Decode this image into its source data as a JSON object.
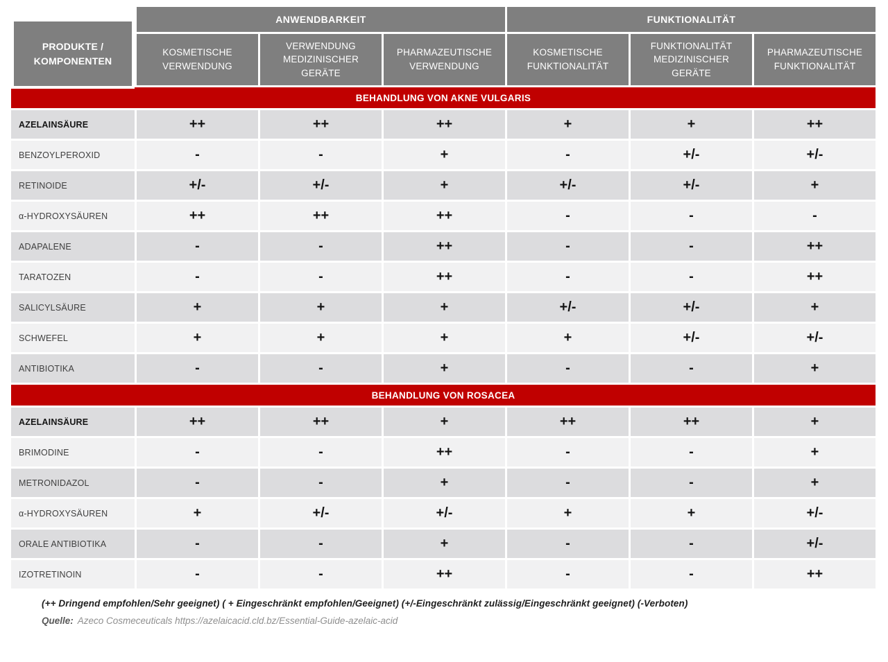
{
  "header": {
    "corner": "PRODUKTE / KOMPONENTEN",
    "groups": [
      {
        "label": "ANWENDBARKEIT"
      },
      {
        "label": "FUNKTIONALITÄT"
      }
    ],
    "columns": [
      "KOSMETISCHE VERWENDUNG",
      "VERWENDUNG MEDIZINISCHER GERÄTE",
      "PHARMAZEUTISCHE VERWENDUNG",
      "KOSMETISCHE FUNKTIONALITÄT",
      "FUNKTIONALITÄT MEDIZINISCHER GERÄTE",
      "PHARMAZEUTISCHE FUNKTIONALITÄT"
    ]
  },
  "sections": [
    {
      "title": "BEHANDLUNG VON AKNE VULGARIS",
      "rows": [
        {
          "product": "AZELAINSÄURE",
          "bold": true,
          "values": [
            "++",
            "++",
            "++",
            "+",
            "+",
            "++"
          ]
        },
        {
          "product": "BENZOYLPEROXID",
          "bold": false,
          "values": [
            "-",
            "-",
            "+",
            "-",
            "+/-",
            "+/-"
          ]
        },
        {
          "product": "RETINOIDE",
          "bold": false,
          "values": [
            "+/-",
            "+/-",
            "+",
            "+/-",
            "+/-",
            "+"
          ]
        },
        {
          "product": "α-HYDROXYSÄUREN",
          "bold": false,
          "values": [
            "++",
            "++",
            "++",
            "-",
            "-",
            "-"
          ]
        },
        {
          "product": "ADAPALENE",
          "bold": false,
          "values": [
            "-",
            "-",
            "++",
            "-",
            "-",
            "++"
          ]
        },
        {
          "product": "TARATOZEN",
          "bold": false,
          "values": [
            "-",
            "-",
            "++",
            "-",
            "-",
            "++"
          ]
        },
        {
          "product": "SALICYLSÄURE",
          "bold": false,
          "values": [
            "+",
            "+",
            "+",
            "+/-",
            "+/-",
            "+"
          ]
        },
        {
          "product": "SCHWEFEL",
          "bold": false,
          "values": [
            "+",
            "+",
            "+",
            "+",
            "+/-",
            "+/-"
          ]
        },
        {
          "product": "ANTIBIOTIKA",
          "bold": false,
          "values": [
            "-",
            "-",
            "+",
            "-",
            "-",
            "+"
          ]
        }
      ]
    },
    {
      "title": "BEHANDLUNG VON ROSACEA",
      "rows": [
        {
          "product": "AZELAINSÄURE",
          "bold": true,
          "values": [
            "++",
            "++",
            "+",
            "++",
            "++",
            "+"
          ]
        },
        {
          "product": "BRIMODINE",
          "bold": false,
          "values": [
            "-",
            "-",
            "++",
            "-",
            "-",
            "+"
          ]
        },
        {
          "product": "METRONIDAZOL",
          "bold": false,
          "values": [
            "-",
            "-",
            "+",
            "-",
            "-",
            "+"
          ]
        },
        {
          "product": "α-HYDROXYSÄUREN",
          "bold": false,
          "values": [
            "+",
            "+/-",
            "+/-",
            "+",
            "+",
            "+/-"
          ]
        },
        {
          "product": "ORALE ANTIBIOTIKA",
          "bold": false,
          "values": [
            "-",
            "-",
            "+",
            "-",
            "-",
            "+/-"
          ]
        },
        {
          "product": "IZOTRETINOIN",
          "bold": false,
          "values": [
            "-",
            "-",
            "++",
            "-",
            "-",
            "++"
          ]
        }
      ]
    }
  ],
  "footer": {
    "legend": "(++ Dringend empfohlen/Sehr geeignet) ( + Eingeschränkt empfohlen/Geeignet) (+/-Eingeschränkt zulässig/Eingeschränkt geeignet) (-Verboten)",
    "source_label": "Quelle:",
    "source_text": "Azeco Cosmeceuticals https://azelaicacid.cld.bz/Essential-Guide-azelaic-acid"
  },
  "colors": {
    "header_gray": "#7f7f7f",
    "section_red": "#c00000",
    "row_dark": "#dcdcde",
    "row_light": "#f1f1f2"
  }
}
